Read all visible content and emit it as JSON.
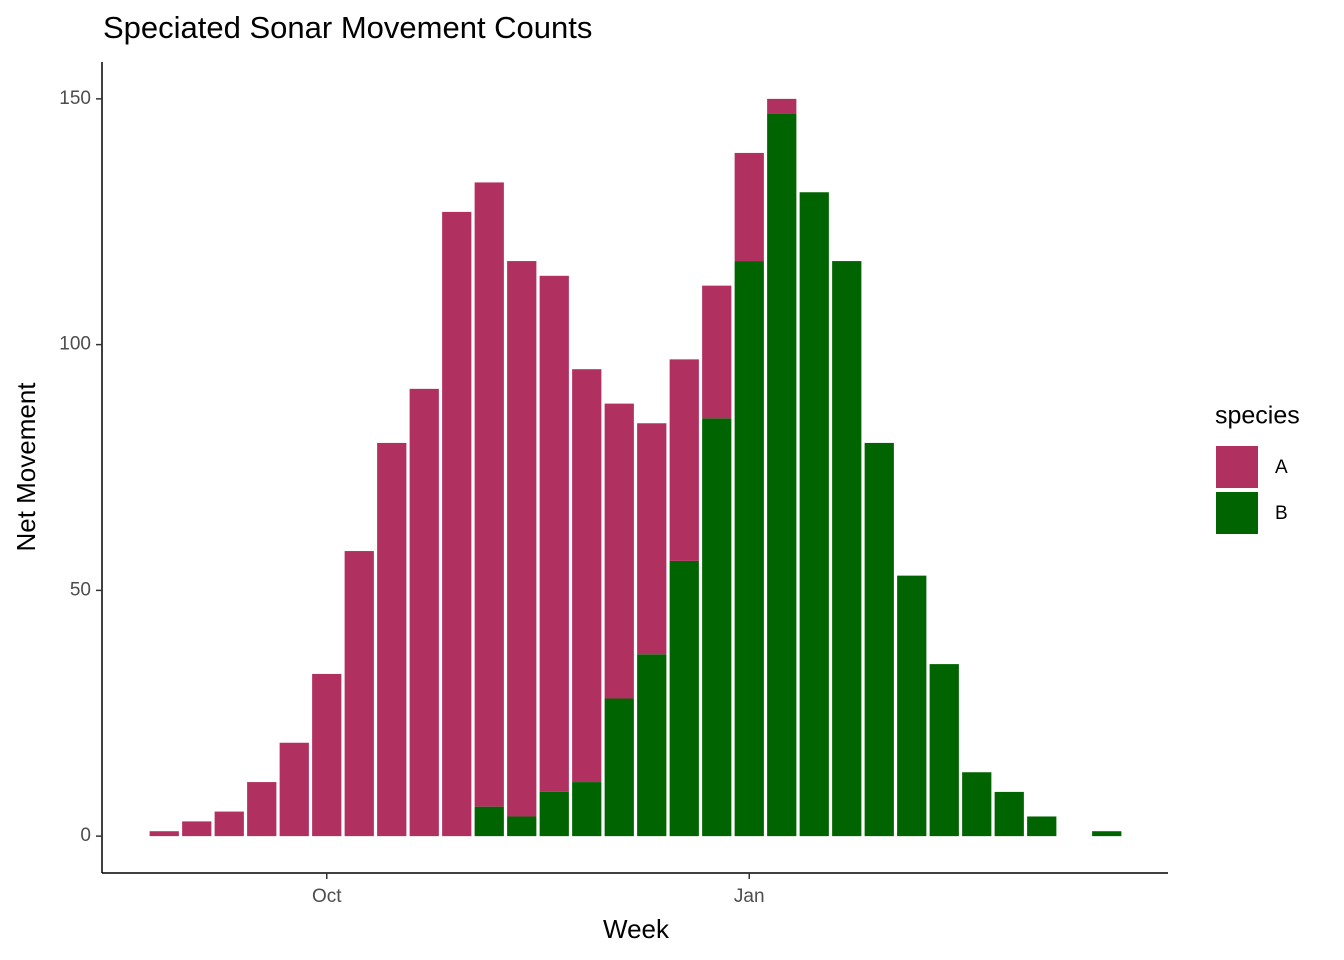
{
  "chart_data": {
    "type": "bar",
    "stacked": true,
    "title": "Speciated Sonar Movement Counts",
    "x_label": "Week",
    "y_label": "Net Movement",
    "legend_title": "species",
    "legend_position": "right",
    "categories": [
      null,
      null,
      null,
      null,
      null,
      "Oct",
      null,
      null,
      null,
      null,
      null,
      null,
      null,
      null,
      null,
      null,
      null,
      null,
      "Jan",
      null,
      null,
      null,
      null,
      null,
      null,
      null,
      null,
      null,
      null,
      null
    ],
    "series": [
      {
        "name": "A",
        "color": "#B03060",
        "values": [
          1,
          3,
          5,
          11,
          19,
          33,
          58,
          80,
          91,
          127,
          127,
          113,
          105,
          84,
          60,
          47,
          41,
          27,
          22,
          3,
          0,
          0,
          0,
          0,
          0,
          0,
          0,
          0,
          null,
          0
        ]
      },
      {
        "name": "B",
        "color": "#006400",
        "values": [
          0,
          0,
          0,
          0,
          0,
          0,
          0,
          0,
          0,
          0,
          6,
          4,
          9,
          11,
          28,
          37,
          56,
          85,
          117,
          147,
          131,
          117,
          80,
          53,
          35,
          13,
          9,
          4,
          null,
          1
        ]
      }
    ],
    "ylim": [
      -7.5,
      157.5
    ],
    "yticks": [
      0,
      50,
      100,
      150
    ],
    "grid": false
  }
}
